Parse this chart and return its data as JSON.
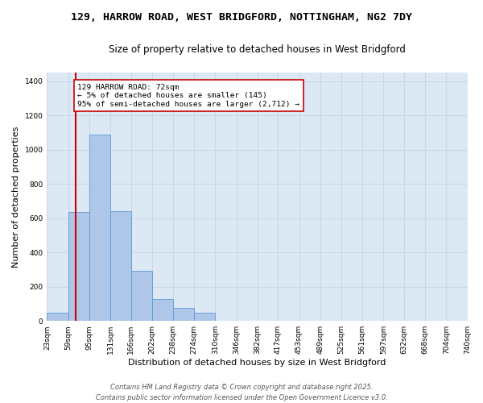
{
  "title_line1": "129, HARROW ROAD, WEST BRIDGFORD, NOTTINGHAM, NG2 7DY",
  "title_line2": "Size of property relative to detached houses in West Bridgford",
  "xlabel": "Distribution of detached houses by size in West Bridgford",
  "ylabel": "Number of detached properties",
  "bins": [
    23,
    59,
    95,
    131,
    166,
    202,
    238,
    274,
    310,
    346,
    382,
    417,
    453,
    489,
    525,
    561,
    597,
    632,
    668,
    704,
    740
  ],
  "bar_heights": [
    50,
    635,
    1090,
    640,
    295,
    130,
    75,
    50,
    0,
    0,
    0,
    0,
    0,
    0,
    0,
    0,
    0,
    0,
    0,
    0
  ],
  "bar_color": "#aec6e8",
  "bar_edgecolor": "#5b9bd5",
  "grid_color": "#c8d8ea",
  "background_color": "#dce9f5",
  "property_size": 72,
  "vline_color": "#cc0000",
  "annotation_text": "129 HARROW ROAD: 72sqm\n← 5% of detached houses are smaller (145)\n95% of semi-detached houses are larger (2,712) →",
  "annotation_box_color": "#ffffff",
  "annotation_box_edgecolor": "#cc0000",
  "ylim": [
    0,
    1450
  ],
  "yticks": [
    0,
    200,
    400,
    600,
    800,
    1000,
    1200,
    1400
  ],
  "footer_line1": "Contains HM Land Registry data © Crown copyright and database right 2025.",
  "footer_line2": "Contains public sector information licensed under the Open Government Licence v3.0.",
  "title_fontsize": 9.5,
  "subtitle_fontsize": 8.5,
  "axis_label_fontsize": 8,
  "tick_fontsize": 6.5,
  "footer_fontsize": 6
}
